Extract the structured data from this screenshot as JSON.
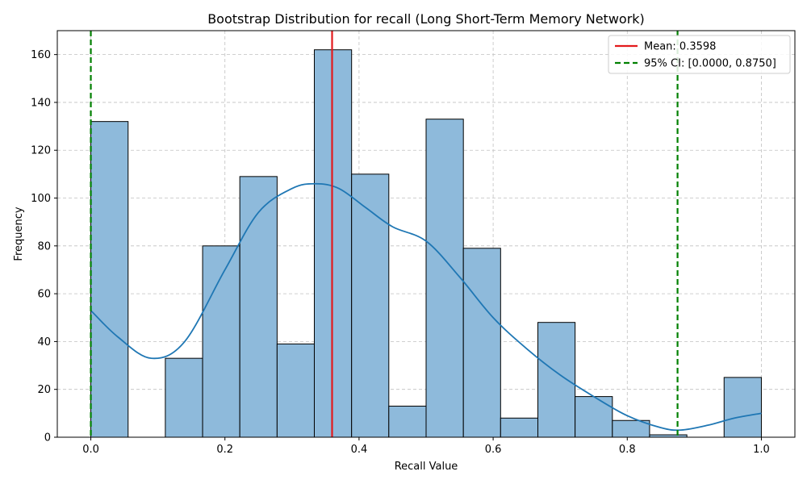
{
  "chart_data": {
    "type": "bar",
    "title": "Bootstrap Distribution for recall (Long Short-Term Memory Network)",
    "xlabel": "Recall Value",
    "ylabel": "Frequency",
    "xlim": [
      -0.05,
      1.05
    ],
    "ylim": [
      0,
      170
    ],
    "xticks": [
      0.0,
      0.2,
      0.4,
      0.6,
      0.8,
      1.0
    ],
    "xtick_labels": [
      "0.0",
      "0.2",
      "0.4",
      "0.6",
      "0.8",
      "1.0"
    ],
    "yticks": [
      0,
      20,
      40,
      60,
      80,
      100,
      120,
      140,
      160
    ],
    "ytick_labels": [
      "0",
      "20",
      "40",
      "60",
      "80",
      "100",
      "120",
      "140",
      "160"
    ],
    "grid": true,
    "bin_edges": [
      0.0,
      0.0556,
      0.1111,
      0.1667,
      0.2222,
      0.2778,
      0.3333,
      0.3889,
      0.4444,
      0.5,
      0.5556,
      0.6111,
      0.6667,
      0.7222,
      0.7778,
      0.8333,
      0.8889,
      0.9444,
      1.0
    ],
    "values": [
      132,
      0,
      33,
      80,
      109,
      39,
      162,
      110,
      13,
      133,
      79,
      8,
      48,
      17,
      7,
      1,
      0,
      25
    ],
    "kde": {
      "x": [
        0.0,
        0.04,
        0.09,
        0.14,
        0.2,
        0.25,
        0.3,
        0.335,
        0.37,
        0.41,
        0.45,
        0.5,
        0.55,
        0.6,
        0.65,
        0.7,
        0.75,
        0.8,
        0.85,
        0.88,
        0.92,
        0.96,
        1.0
      ],
      "y": [
        53,
        42,
        33,
        40,
        70,
        94,
        104,
        106,
        104,
        96,
        88,
        82,
        67,
        50,
        37,
        26,
        17,
        9,
        4,
        3,
        5,
        8,
        10
      ]
    },
    "mean": 0.3598,
    "ci": [
      0.0,
      0.875
    ],
    "legend": {
      "position": "top-right",
      "entries": [
        "Mean: 0.3598",
        "95% CI: [0.0000, 0.8750]"
      ]
    },
    "colors": {
      "bar_fill": "#8ebadb",
      "bar_edge": "#000000",
      "kde_line": "#1f77b4",
      "mean_line": "#e31a1c",
      "ci_line": "#008000",
      "grid": "#c0c0c0"
    }
  }
}
